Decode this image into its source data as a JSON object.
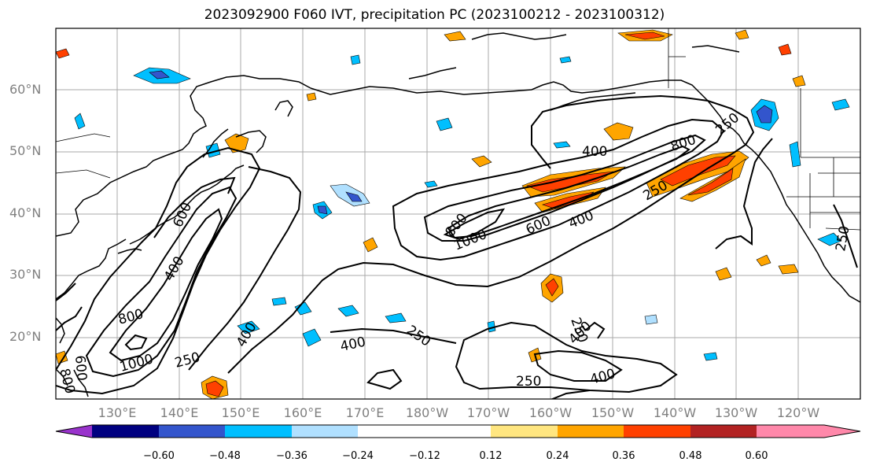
{
  "title": "2023092900 F060 IVT, precipitation PC (2023100212 - 2023100312)",
  "lat_labels": [
    "60°N",
    "50°N",
    "40°N",
    "30°N",
    "20°N"
  ],
  "lon_labels": [
    "130°E",
    "140°E",
    "150°E",
    "160°E",
    "170°E",
    "180°W",
    "170°W",
    "160°W",
    "150°W",
    "140°W",
    "130°W",
    "120°W"
  ],
  "colorbar": {
    "ticks": [
      "−0.60",
      "−0.48",
      "−0.36",
      "−0.24",
      "−0.12",
      "0.12",
      "0.24",
      "0.36",
      "0.48",
      "0.60"
    ],
    "colors": [
      "#9933cc",
      "#000080",
      "#3355cc",
      "#00bfff",
      "#b0e0ff",
      "#ffffff",
      "#ffe680",
      "#ffa500",
      "#ff4000",
      "#b22222",
      "#ff88aa"
    ]
  },
  "contour_labels": [
    "400",
    "800",
    "250",
    "400",
    "600",
    "1000",
    "800",
    "600",
    "400",
    "250",
    "250",
    "400",
    "400",
    "250",
    "400",
    "250",
    "800",
    "1000",
    "400",
    "600",
    "800",
    "250",
    "250"
  ],
  "colors": {
    "axis_tick": "#808080",
    "grid": "#a9a9a9",
    "positive": "#ff4000",
    "negative": "#00bfff"
  }
}
